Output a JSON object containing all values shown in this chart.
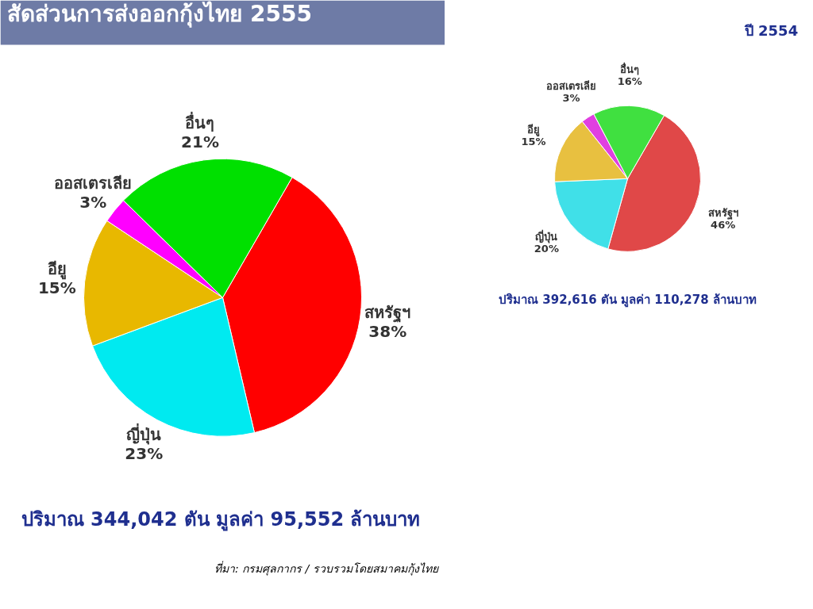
{
  "chart_data": [
    {
      "type": "pie",
      "title": "สัดส่วนการส่งออกกุ้งไทย 2555",
      "categories": [
        "สหรัฐฯ",
        "ญี่ปุ่น",
        "อียู",
        "ออสเตรเลีย",
        "อื่นๆ"
      ],
      "values": [
        38,
        23,
        15,
        3,
        21
      ],
      "colors": [
        "#ff0000",
        "#00eaf0",
        "#e8b800",
        "#ff00ff",
        "#00e000"
      ],
      "value_labels": [
        "38%",
        "23%",
        "15%",
        "3%",
        "21%"
      ],
      "annotations": [
        "ปริมาณ 344,042 ตัน มูลค่า 95,552 ล้านบาท",
        "ที่มา: กรมศุลกากร / รวบรวมโดยสมาคมกุ้งไทย"
      ]
    },
    {
      "type": "pie",
      "title": "ปี 2554",
      "categories": [
        "สหรัฐฯ",
        "ญี่ปุ่น",
        "อียู",
        "ออสเตรเลีย",
        "อื่นๆ"
      ],
      "values": [
        46,
        20,
        15,
        3,
        16
      ],
      "colors": [
        "#e04848",
        "#40e0e8",
        "#e8c040",
        "#e040e0",
        "#40e040"
      ],
      "value_labels": [
        "46%",
        "20%",
        "15%",
        "3%",
        "16%"
      ],
      "annotations": [
        "ปริมาณ 392,616 ตัน มูลค่า 110,278 ล้านบาท"
      ]
    }
  ]
}
